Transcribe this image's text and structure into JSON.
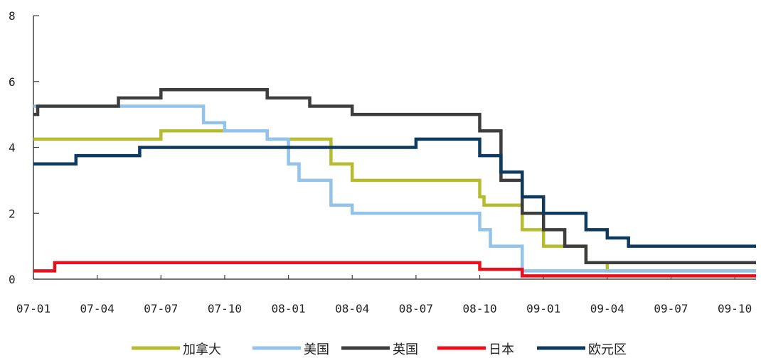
{
  "chart_data": {
    "type": "line",
    "step": true,
    "title": "",
    "xlabel": "",
    "ylabel": "",
    "ylim": [
      0,
      8
    ],
    "yticks": [
      "0",
      "2",
      "4",
      "6",
      "8"
    ],
    "xlim": [
      "2007-01",
      "2009-11"
    ],
    "xticks": [
      "07-01",
      "07-04",
      "07-07",
      "07-10",
      "08-01",
      "08-04",
      "08-07",
      "08-10",
      "09-01",
      "09-04",
      "09-07",
      "09-10"
    ],
    "grid": false,
    "legend": "bottom",
    "series": [
      {
        "name": "加拿大",
        "color": "#b5bd2e",
        "points": [
          [
            "2007-01",
            4.25
          ],
          [
            "2007-07",
            4.5
          ],
          [
            "2007-12",
            4.25
          ],
          [
            "2008-03",
            3.5
          ],
          [
            "2008-04",
            3.0
          ],
          [
            "2008-10",
            2.5
          ],
          [
            "2008-10.2",
            2.25
          ],
          [
            "2008-12",
            1.5
          ],
          [
            "2009-01",
            1.0
          ],
          [
            "2009-03",
            0.5
          ],
          [
            "2009-04",
            0.25
          ],
          [
            "2009-11",
            0.25
          ]
        ]
      },
      {
        "name": "美国",
        "color": "#93c2ea",
        "points": [
          [
            "2007-01",
            5.25
          ],
          [
            "2007-09",
            4.75
          ],
          [
            "2007-10",
            4.5
          ],
          [
            "2007-12",
            4.25
          ],
          [
            "2008-01",
            3.5
          ],
          [
            "2008-01.5",
            3.0
          ],
          [
            "2008-03",
            2.25
          ],
          [
            "2008-04",
            2.0
          ],
          [
            "2008-10",
            1.5
          ],
          [
            "2008-10.5",
            1.0
          ],
          [
            "2008-12",
            0.25
          ],
          [
            "2009-11",
            0.25
          ]
        ]
      },
      {
        "name": "英国",
        "color": "#3d3d3d",
        "points": [
          [
            "2007-01",
            5.0
          ],
          [
            "2007-01.2",
            5.25
          ],
          [
            "2007-05",
            5.5
          ],
          [
            "2007-07",
            5.75
          ],
          [
            "2007-12",
            5.5
          ],
          [
            "2008-02",
            5.25
          ],
          [
            "2008-04",
            5.0
          ],
          [
            "2008-10",
            4.5
          ],
          [
            "2008-11",
            3.0
          ],
          [
            "2008-12",
            2.0
          ],
          [
            "2009-01",
            1.5
          ],
          [
            "2009-02",
            1.0
          ],
          [
            "2009-03",
            0.5
          ],
          [
            "2009-11",
            0.5
          ]
        ]
      },
      {
        "name": "日本",
        "color": "#e8111b",
        "points": [
          [
            "2007-01",
            0.25
          ],
          [
            "2007-02",
            0.5
          ],
          [
            "2008-10",
            0.3
          ],
          [
            "2008-12",
            0.1
          ],
          [
            "2009-11",
            0.1
          ]
        ]
      },
      {
        "name": "欧元区",
        "color": "#0f3a5f",
        "points": [
          [
            "2007-01",
            3.5
          ],
          [
            "2007-03",
            3.75
          ],
          [
            "2007-06",
            4.0
          ],
          [
            "2008-07",
            4.25
          ],
          [
            "2008-10",
            3.75
          ],
          [
            "2008-11",
            3.25
          ],
          [
            "2008-12",
            2.5
          ],
          [
            "2009-01",
            2.0
          ],
          [
            "2009-03",
            1.5
          ],
          [
            "2009-04",
            1.25
          ],
          [
            "2009-05",
            1.0
          ],
          [
            "2009-11",
            1.0
          ]
        ]
      }
    ]
  }
}
